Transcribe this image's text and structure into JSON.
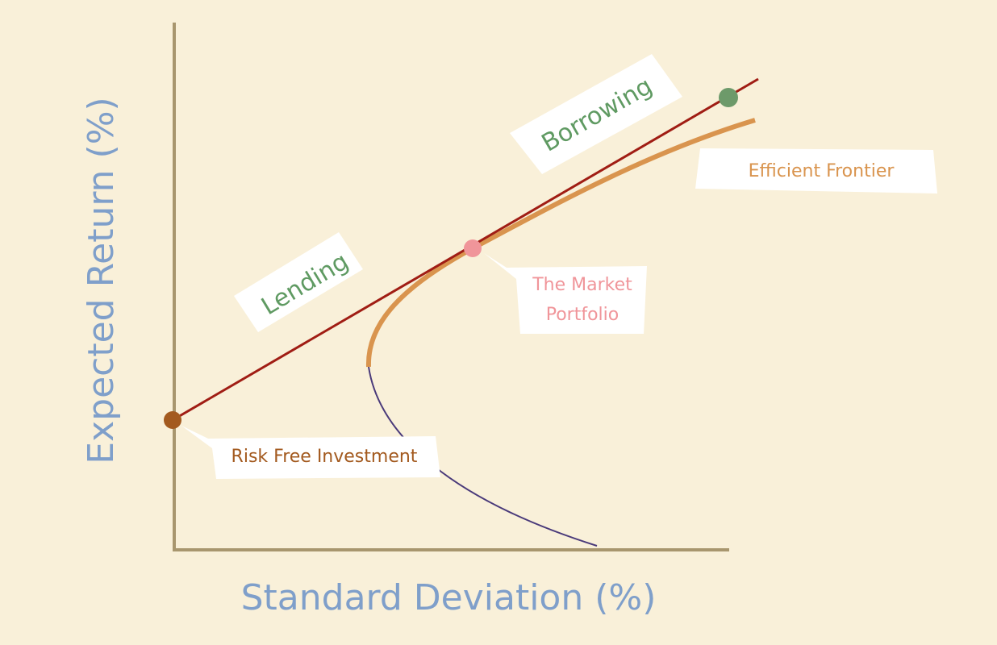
{
  "axes": {
    "x_label": "Standard Deviation (%)",
    "y_label": "Expected Return (%)"
  },
  "labels": {
    "borrowing": "Borrowing",
    "lending": "Lending",
    "efficient_frontier": "Efficient Frontier",
    "market_portfolio_line1": "The Market",
    "market_portfolio_line2": "Portfolio",
    "risk_free": "Risk Free Investment"
  },
  "colors": {
    "background": "#f9f0d9",
    "axis": "#a8966e",
    "axis_label": "#7f9fca",
    "capital_market_line": "#a01d14",
    "efficient_frontier": "#d9944e",
    "inefficient_frontier": "#4a3a7a",
    "lending_borrowing_text": "#5f9a62",
    "market_portfolio": "#f0959a",
    "risk_free": "#a35a1f",
    "borrowing_point": "#6d9a6a",
    "label_box": "#ffffff"
  }
}
